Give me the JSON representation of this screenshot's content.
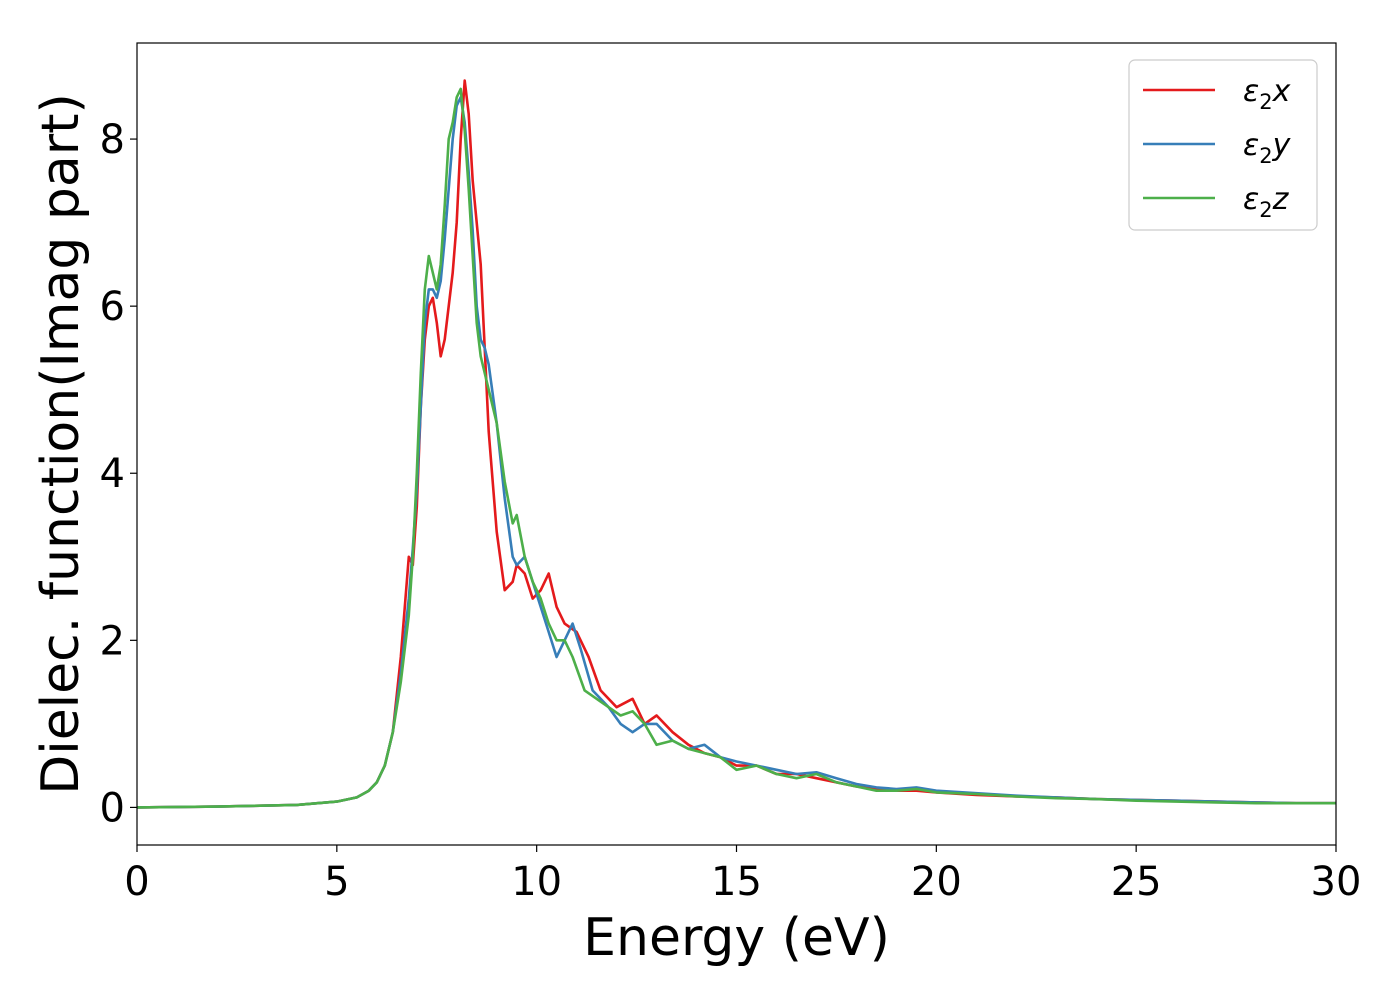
{
  "chart_data": {
    "type": "line",
    "title": "",
    "xlabel": "Energy (eV)",
    "ylabel": "Dielec. function(Imag part)",
    "xlim": [
      0,
      30
    ],
    "ylim": [
      -0.45,
      9.15
    ],
    "xticks": [
      "0",
      "5",
      "10",
      "15",
      "20",
      "25",
      "30"
    ],
    "yticks": [
      "0",
      "2",
      "4",
      "6",
      "8"
    ],
    "grid": false,
    "legend_position": "top-right",
    "series": [
      {
        "name": "ε₂x",
        "legend_main": "ε",
        "legend_sub": "2",
        "legend_suffix": "x",
        "color": "#e41a1c",
        "x": [
          0,
          2,
          4,
          5,
          5.5,
          5.8,
          6.0,
          6.2,
          6.4,
          6.6,
          6.8,
          6.9,
          7.0,
          7.1,
          7.2,
          7.3,
          7.4,
          7.5,
          7.6,
          7.7,
          7.8,
          7.9,
          8.0,
          8.1,
          8.2,
          8.3,
          8.4,
          8.5,
          8.6,
          8.7,
          8.8,
          9.0,
          9.2,
          9.4,
          9.5,
          9.7,
          9.9,
          10.1,
          10.3,
          10.5,
          10.7,
          11.0,
          11.3,
          11.6,
          12.0,
          12.4,
          12.7,
          13.0,
          13.4,
          13.8,
          14.2,
          14.6,
          15.0,
          15.5,
          16.0,
          16.5,
          17.0,
          17.5,
          18.0,
          18.5,
          19.0,
          19.5,
          20.0,
          21.0,
          22.0,
          23.0,
          24.0,
          25.0,
          26.0,
          27.0,
          28.0,
          29.0,
          30.0
        ],
        "values": [
          0.0,
          0.01,
          0.03,
          0.07,
          0.12,
          0.2,
          0.3,
          0.5,
          0.9,
          1.8,
          3.0,
          2.9,
          3.6,
          4.8,
          5.6,
          6.0,
          6.1,
          5.8,
          5.4,
          5.6,
          6.0,
          6.4,
          7.0,
          8.0,
          8.7,
          8.3,
          7.5,
          7.0,
          6.5,
          5.5,
          4.5,
          3.3,
          2.6,
          2.7,
          2.9,
          2.8,
          2.5,
          2.6,
          2.8,
          2.4,
          2.2,
          2.1,
          1.8,
          1.4,
          1.2,
          1.3,
          1.0,
          1.1,
          0.9,
          0.75,
          0.65,
          0.6,
          0.5,
          0.5,
          0.4,
          0.4,
          0.35,
          0.3,
          0.25,
          0.22,
          0.2,
          0.2,
          0.18,
          0.15,
          0.13,
          0.12,
          0.1,
          0.09,
          0.08,
          0.07,
          0.06,
          0.05,
          0.05
        ]
      },
      {
        "name": "ε₂y",
        "legend_main": "ε",
        "legend_sub": "2",
        "legend_suffix": "y",
        "color": "#377eb8",
        "x": [
          0,
          2,
          4,
          5,
          5.5,
          5.8,
          6.0,
          6.2,
          6.4,
          6.6,
          6.8,
          6.9,
          7.0,
          7.1,
          7.2,
          7.3,
          7.4,
          7.5,
          7.6,
          7.7,
          7.8,
          7.9,
          8.0,
          8.1,
          8.2,
          8.3,
          8.4,
          8.5,
          8.6,
          8.7,
          8.8,
          9.0,
          9.2,
          9.4,
          9.5,
          9.7,
          9.9,
          10.1,
          10.3,
          10.5,
          10.7,
          10.9,
          11.1,
          11.4,
          11.8,
          12.1,
          12.4,
          12.7,
          13.0,
          13.4,
          13.8,
          14.2,
          14.6,
          15.0,
          15.5,
          16.0,
          16.5,
          17.0,
          17.5,
          18.0,
          18.5,
          19.0,
          19.5,
          20.0,
          21.0,
          22.0,
          23.0,
          24.0,
          25.0,
          26.0,
          27.0,
          28.0,
          29.0,
          30.0
        ],
        "values": [
          0.0,
          0.01,
          0.03,
          0.07,
          0.12,
          0.2,
          0.3,
          0.5,
          0.9,
          1.6,
          2.5,
          3.1,
          3.8,
          4.8,
          5.8,
          6.2,
          6.2,
          6.1,
          6.3,
          6.8,
          7.4,
          8.0,
          8.4,
          8.5,
          8.2,
          7.6,
          6.9,
          6.0,
          5.6,
          5.5,
          5.3,
          4.6,
          3.7,
          3.0,
          2.9,
          3.0,
          2.7,
          2.4,
          2.1,
          1.8,
          2.0,
          2.2,
          1.9,
          1.4,
          1.2,
          1.0,
          0.9,
          1.0,
          1.0,
          0.8,
          0.7,
          0.75,
          0.6,
          0.55,
          0.5,
          0.45,
          0.4,
          0.42,
          0.35,
          0.28,
          0.24,
          0.22,
          0.24,
          0.2,
          0.17,
          0.14,
          0.12,
          0.1,
          0.09,
          0.08,
          0.07,
          0.06,
          0.05,
          0.05
        ]
      },
      {
        "name": "ε₂z",
        "legend_main": "ε",
        "legend_sub": "2",
        "legend_suffix": "z",
        "color": "#4daf4a",
        "x": [
          0,
          2,
          4,
          5,
          5.5,
          5.8,
          6.0,
          6.2,
          6.4,
          6.6,
          6.8,
          6.9,
          7.0,
          7.1,
          7.2,
          7.3,
          7.4,
          7.5,
          7.6,
          7.7,
          7.8,
          7.9,
          8.0,
          8.1,
          8.2,
          8.3,
          8.4,
          8.5,
          8.6,
          8.7,
          8.8,
          9.0,
          9.2,
          9.4,
          9.5,
          9.7,
          9.9,
          10.1,
          10.3,
          10.5,
          10.7,
          10.9,
          11.2,
          11.5,
          11.8,
          12.1,
          12.4,
          12.7,
          13.0,
          13.4,
          13.8,
          14.2,
          14.6,
          15.0,
          15.5,
          16.0,
          16.5,
          17.0,
          17.5,
          18.0,
          18.5,
          19.0,
          19.5,
          20.0,
          21.0,
          22.0,
          23.0,
          24.0,
          25.0,
          26.0,
          27.0,
          28.0,
          29.0,
          30.0
        ],
        "values": [
          0.0,
          0.01,
          0.03,
          0.07,
          0.12,
          0.2,
          0.3,
          0.5,
          0.9,
          1.5,
          2.3,
          3.0,
          4.0,
          5.2,
          6.2,
          6.6,
          6.4,
          6.2,
          6.5,
          7.2,
          8.0,
          8.2,
          8.5,
          8.6,
          8.1,
          7.4,
          6.6,
          5.8,
          5.4,
          5.2,
          5.0,
          4.6,
          3.9,
          3.4,
          3.5,
          3.0,
          2.7,
          2.5,
          2.2,
          2.0,
          2.0,
          1.8,
          1.4,
          1.3,
          1.2,
          1.1,
          1.15,
          1.0,
          0.75,
          0.8,
          0.7,
          0.65,
          0.6,
          0.45,
          0.5,
          0.4,
          0.35,
          0.4,
          0.3,
          0.25,
          0.2,
          0.2,
          0.22,
          0.18,
          0.16,
          0.13,
          0.11,
          0.1,
          0.08,
          0.07,
          0.06,
          0.05,
          0.05,
          0.05
        ]
      }
    ]
  }
}
